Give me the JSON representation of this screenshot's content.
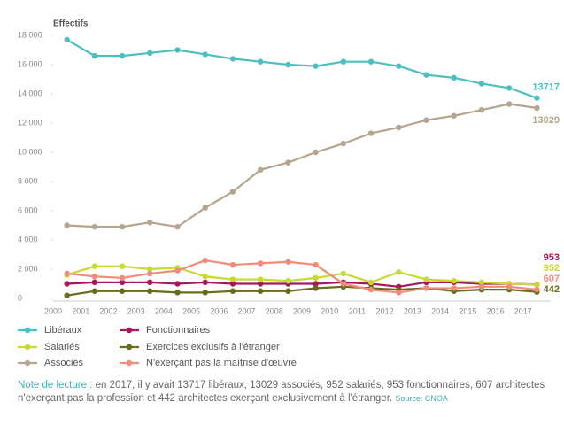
{
  "chart_data": {
    "type": "line",
    "title": "Effectifs",
    "categories": [
      "2000",
      "2001",
      "2002",
      "2003",
      "2004",
      "2005",
      "2006",
      "2007",
      "2008",
      "2009",
      "2010",
      "2011",
      "2012",
      "2013",
      "2014",
      "2015",
      "2016",
      "2017"
    ],
    "ylim": [
      0,
      18000
    ],
    "yticks": [
      0,
      {
        "value": 2000,
        "label": "2 000"
      },
      {
        "value": 4000,
        "label": "4 000"
      },
      {
        "value": 6000,
        "label": "6 000"
      },
      {
        "value": 8000,
        "label": "8 000"
      },
      {
        "value": 10000,
        "label": "10 000"
      },
      {
        "value": 12000,
        "label": "12 000"
      },
      {
        "value": 14000,
        "label": "14 000"
      },
      {
        "value": 16000,
        "label": "16 000"
      },
      {
        "value": 18000,
        "label": "18 000"
      }
    ],
    "grid": false,
    "series": [
      {
        "name": "Libéraux",
        "color": "#4dbfc0",
        "values": [
          17700,
          16600,
          16600,
          16800,
          17000,
          16700,
          16400,
          16200,
          16000,
          15900,
          16200,
          16200,
          15900,
          15300,
          15100,
          14700,
          14400,
          13717
        ]
      },
      {
        "name": "Fonctionnaires",
        "color": "#a3195b",
        "values": [
          1000,
          1100,
          1100,
          1100,
          1000,
          1100,
          1000,
          1000,
          1000,
          1000,
          1100,
          1000,
          800,
          1100,
          1100,
          1000,
          1000,
          953
        ]
      },
      {
        "name": "Salariés",
        "color": "#c8d932",
        "values": [
          1600,
          2200,
          2200,
          2000,
          2100,
          1500,
          1300,
          1300,
          1200,
          1400,
          1700,
          1100,
          1800,
          1300,
          1200,
          1100,
          1000,
          952
        ]
      },
      {
        "name": "Exercices exclusifs à l'étranger",
        "color": "#6b6b1f",
        "values": [
          200,
          500,
          500,
          500,
          400,
          400,
          500,
          500,
          500,
          700,
          800,
          700,
          600,
          700,
          500,
          600,
          600,
          442
        ]
      },
      {
        "name": "Associés",
        "color": "#b5a58e",
        "values": [
          5000,
          4900,
          4900,
          5200,
          4900,
          6200,
          7300,
          8800,
          9300,
          10000,
          10600,
          11300,
          11700,
          12200,
          12500,
          12900,
          13300,
          13029
        ]
      },
      {
        "name": "N'exerçant pas la maîtrise d'œuvre",
        "color": "#f08c7a",
        "values": [
          1700,
          1500,
          1400,
          1700,
          1900,
          2600,
          2300,
          2400,
          2500,
          2300,
          1000,
          600,
          400,
          700,
          700,
          800,
          800,
          607
        ]
      }
    ]
  },
  "note": {
    "label": "Note de lecture :",
    "text": "en 2017, il y avait 13717 libéraux, 13029 associés, 952 salariés, 953 fonctionnaires, 607 architectes n'exerçant pas la profession et 442 architectes exerçant exclusivement à l'étranger.",
    "source": "Source: CNOA"
  }
}
